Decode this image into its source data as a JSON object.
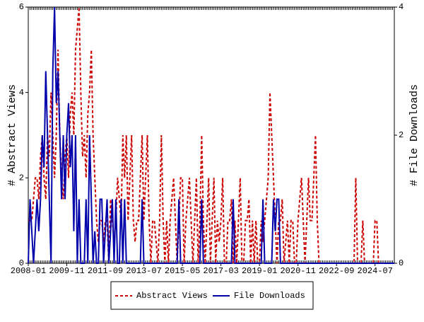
{
  "chart_data": {
    "type": "line",
    "categories": [
      "2008-01",
      null,
      null,
      null,
      null,
      null,
      null,
      null,
      null,
      null,
      null,
      null,
      null,
      null,
      null,
      null,
      null,
      null,
      null,
      null,
      null,
      null,
      "2009-11",
      null,
      null,
      null,
      null,
      null,
      null,
      null,
      null,
      null,
      null,
      null,
      null,
      null,
      null,
      null,
      null,
      null,
      null,
      null,
      null,
      null,
      "2011-09",
      null,
      null,
      null,
      null,
      null,
      null,
      null,
      null,
      null,
      null,
      null,
      null,
      null,
      null,
      null,
      null,
      null,
      null,
      null,
      null,
      null,
      "2013-07",
      null,
      null,
      null,
      null,
      null,
      null,
      null,
      null,
      null,
      null,
      null,
      null,
      null,
      null,
      null,
      null,
      null,
      null,
      null,
      null,
      null,
      "2015-05",
      null,
      null,
      null,
      null,
      null,
      null,
      null,
      null,
      null,
      null,
      null,
      null,
      null,
      null,
      null,
      null,
      null,
      null,
      null,
      null,
      null,
      "2017-03",
      null,
      null,
      null,
      null,
      null,
      null,
      null,
      null,
      null,
      null,
      null,
      null,
      null,
      null,
      null,
      null,
      null,
      null,
      null,
      null,
      null,
      "2019-01",
      null,
      null,
      null,
      null,
      null,
      null,
      null,
      null,
      null,
      null,
      null,
      null,
      null,
      null,
      null,
      null,
      null,
      null,
      null,
      null,
      null,
      "2020-11",
      null,
      null,
      null,
      null,
      null,
      null,
      null,
      null,
      null,
      null,
      null,
      null,
      null,
      null,
      null,
      null,
      null,
      null,
      null,
      null,
      null,
      "2022-09",
      null,
      null,
      null,
      null,
      null,
      null,
      null,
      null,
      null,
      null,
      null,
      null,
      null,
      null,
      null,
      null,
      null,
      null,
      null,
      null,
      null,
      "2024-07",
      null,
      null,
      null,
      null,
      null,
      null,
      null,
      null,
      null,
      null,
      null
    ],
    "ylabel": "# Abstract Views",
    "y2label": "# File Downloads",
    "ylim": [
      0,
      6
    ],
    "yticks": [
      0,
      2,
      4,
      6
    ],
    "y2lim": [
      0,
      4
    ],
    "y2ticks": [
      0,
      2,
      4
    ],
    "legend": "bottom",
    "series": [
      {
        "name": "Abstract Views",
        "color": "#cc0000",
        "dash": true,
        "values": [
          1,
          1,
          1,
          1.5,
          2,
          2,
          1.5,
          2.5,
          3,
          2,
          1.5,
          3,
          2.5,
          4,
          3,
          2,
          3,
          5,
          3,
          2,
          1.5,
          2.5,
          3,
          2,
          3.5,
          4,
          3,
          5,
          5.5,
          6,
          4,
          2.5,
          3,
          2,
          3.5,
          4,
          5,
          3,
          2,
          1,
          0.5,
          1,
          1,
          0.5,
          1,
          1,
          0,
          1.5,
          1,
          0.5,
          1,
          2,
          1.5,
          1,
          3,
          2,
          3,
          1,
          2,
          3,
          1,
          0.5,
          1,
          1,
          2,
          3,
          1,
          2,
          3,
          1,
          0,
          1,
          1,
          0.5,
          0,
          1,
          3,
          1,
          0,
          1,
          0,
          1,
          1.5,
          2,
          1,
          0,
          1,
          2,
          2,
          0,
          1,
          1.5,
          2,
          1,
          0,
          1,
          2,
          0,
          1,
          3,
          1,
          0,
          1,
          2,
          0,
          1,
          2,
          0,
          1,
          0.5,
          1,
          2,
          0,
          0,
          1,
          1,
          1.5,
          0,
          1,
          0,
          1,
          2,
          0,
          0,
          1,
          1,
          1.5,
          0,
          1,
          0,
          1,
          0,
          0,
          1,
          0.5,
          1,
          1.5,
          2,
          4,
          3,
          2,
          1,
          0,
          1,
          1,
          1.5,
          0,
          0.5,
          1,
          0,
          1,
          1,
          0,
          0,
          1,
          1.5,
          2,
          1,
          0,
          1,
          2,
          1,
          1,
          2,
          3,
          1,
          0,
          0,
          0,
          0,
          0,
          0,
          0,
          0,
          0,
          0,
          0,
          0,
          0,
          0,
          0,
          0,
          0,
          0,
          0,
          0,
          0,
          2,
          0,
          0,
          0,
          1,
          0,
          0,
          0,
          0,
          0,
          0,
          1,
          1,
          0,
          0,
          0,
          0,
          0,
          0,
          0,
          0,
          0,
          0
        ]
      },
      {
        "name": "File Downloads",
        "color": "#0000aa",
        "dash": false,
        "axis": "y2",
        "values": [
          0,
          1,
          0.5,
          0,
          0.5,
          1,
          0.5,
          1,
          2,
          1.5,
          3,
          2,
          1,
          0,
          3,
          4,
          2.5,
          3,
          2,
          1,
          2,
          1,
          2,
          2.5,
          1.5,
          2,
          0.5,
          2,
          0,
          1,
          0,
          0,
          0,
          1,
          0,
          2,
          1,
          0,
          0.5,
          0,
          0,
          1,
          1,
          0,
          0.5,
          1,
          0,
          0.5,
          1,
          0,
          1,
          0,
          0,
          1,
          0,
          1,
          0,
          0,
          0,
          0,
          0,
          0,
          0,
          0,
          0,
          1,
          0,
          0,
          0,
          0,
          0,
          0,
          0,
          0,
          0,
          0,
          0,
          0,
          0,
          0,
          0,
          0,
          0,
          0,
          0,
          0,
          1,
          0,
          0,
          0,
          0,
          0,
          0,
          0,
          0,
          0,
          0,
          0,
          0,
          1,
          0,
          0,
          0,
          0,
          0,
          0,
          0,
          0,
          0,
          0,
          0,
          0,
          0,
          0,
          0,
          0,
          0,
          1,
          0,
          0,
          0,
          0,
          0,
          0,
          0,
          0,
          0,
          0,
          0,
          0,
          0,
          0,
          0,
          0,
          1,
          0,
          0,
          0,
          0,
          0,
          1,
          0.5,
          1,
          1,
          0,
          0,
          0,
          0,
          0,
          0,
          0,
          0,
          0,
          0,
          0,
          0,
          0,
          0,
          0,
          0,
          0,
          0,
          0,
          0,
          0,
          0,
          0,
          0,
          0,
          0,
          0,
          0,
          0,
          0,
          0,
          0,
          0,
          0,
          0,
          0,
          0,
          0,
          0,
          0,
          0,
          0,
          0,
          0,
          0,
          0,
          0,
          0,
          0,
          0,
          0,
          0,
          0,
          0,
          0,
          0,
          0,
          0,
          0,
          0,
          0,
          0,
          0,
          0,
          0,
          0
        ]
      }
    ]
  }
}
